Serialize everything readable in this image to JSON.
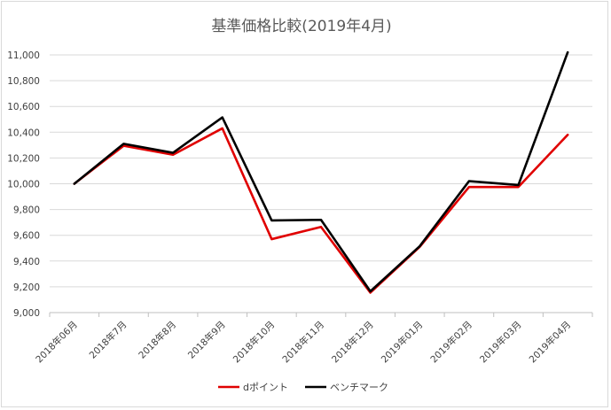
{
  "chart_data": {
    "type": "line",
    "title": "基準価格比較(2019年4月)",
    "xlabel": "",
    "ylabel": "",
    "categories": [
      "2018年06月",
      "2018年7月",
      "2018年8月",
      "2018年9月",
      "2018年10月",
      "2018年11月",
      "2018年12月",
      "2019年01月",
      "2019年02月",
      "2019年03月",
      "2019年04月"
    ],
    "ylim": [
      9000,
      11000
    ],
    "yticks": [
      9000,
      9200,
      9400,
      9600,
      9800,
      10000,
      10200,
      10400,
      10600,
      10800,
      11000
    ],
    "ytick_labels": [
      "9,000",
      "9,200",
      "9,400",
      "9,600",
      "9,800",
      "10,000",
      "10,200",
      "10,400",
      "10,600",
      "10,800",
      "11,000"
    ],
    "grid": true,
    "legend_position": "bottom",
    "series": [
      {
        "name": "dポイント",
        "color": "#e00000",
        "values": [
          10000,
          10295,
          10225,
          10430,
          9570,
          9665,
          9155,
          9510,
          9975,
          9975,
          10380
        ]
      },
      {
        "name": "ベンチマーク",
        "color": "#000000",
        "values": [
          10000,
          10310,
          10240,
          10515,
          9715,
          9720,
          9165,
          9515,
          10020,
          9990,
          11020
        ]
      }
    ]
  }
}
